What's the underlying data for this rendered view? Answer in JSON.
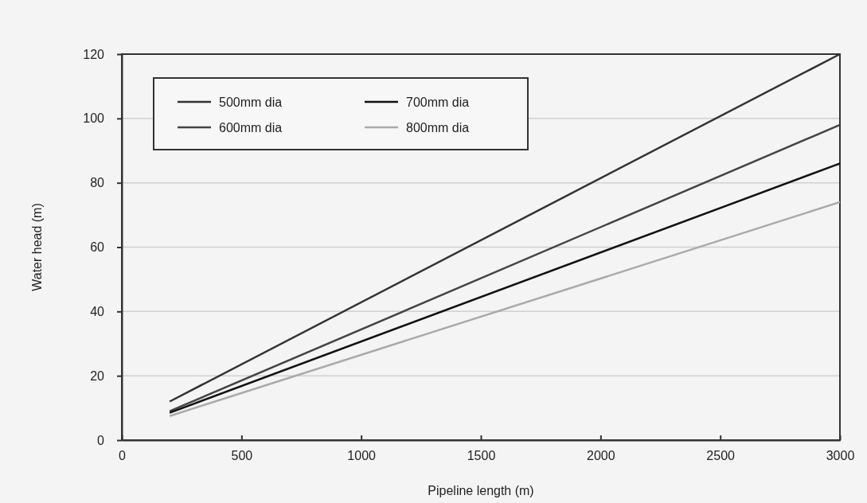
{
  "chart_data": {
    "type": "line",
    "xlabel": "Pipeline length (m)",
    "ylabel": "Water head (m)",
    "x": [
      200,
      3000
    ],
    "series": [
      {
        "name": "500mm dia",
        "color": "#333333",
        "values": [
          12,
          120
        ]
      },
      {
        "name": "600mm dia",
        "color": "#444444",
        "values": [
          9,
          98
        ]
      },
      {
        "name": "700mm dia",
        "color": "#111111",
        "values": [
          8.5,
          86
        ]
      },
      {
        "name": "800mm dia",
        "color": "#aaaaaa",
        "values": [
          7.5,
          74
        ]
      }
    ],
    "xlim": [
      0,
      3000
    ],
    "xticks": [
      0,
      500,
      1000,
      1500,
      2000,
      2500,
      3000
    ],
    "ylim": [
      0,
      120
    ],
    "yticks": [
      0,
      20,
      40,
      60,
      80,
      100,
      120
    ],
    "grid": "y",
    "legend": "top left",
    "marker": "none",
    "line_style": "solid"
  }
}
